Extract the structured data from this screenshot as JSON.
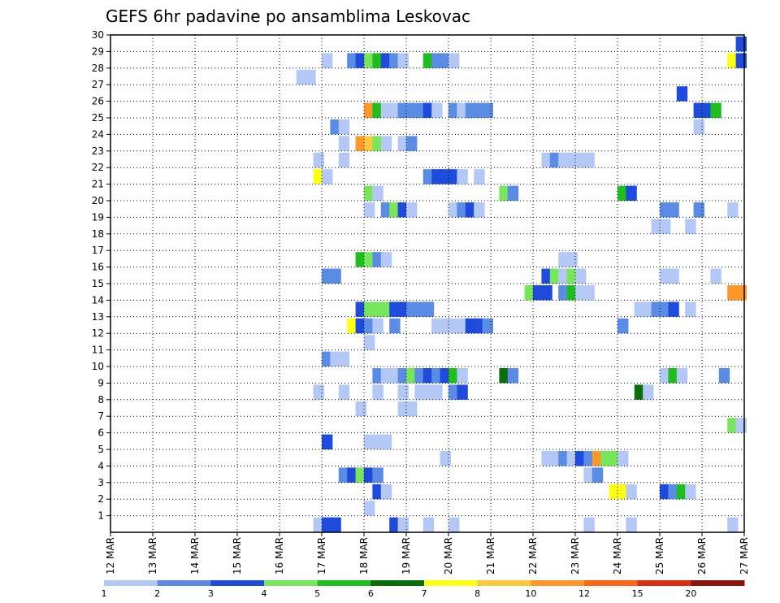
{
  "chart_data": {
    "type": "heatmap",
    "title": "GEFS 6hr padavine po ansamblima Leskovac",
    "xlabel": "",
    "ylabel": "",
    "x_ticks": [
      "12 MAR",
      "13 MAR",
      "14 MAR",
      "15 MAR",
      "16 MAR",
      "17 MAR",
      "18 MAR",
      "19 MAR",
      "20 MAR",
      "21 MAR",
      "22 MAR",
      "23 MAR",
      "24 MAR",
      "25 MAR",
      "26 MAR",
      "27 MAR"
    ],
    "x_range": [
      "12 MAR",
      "27 MAR"
    ],
    "x_step": "6hr",
    "y_ticks": [
      "1",
      "2",
      "3",
      "4",
      "5",
      "6",
      "7",
      "8",
      "9",
      "10",
      "11",
      "12",
      "13",
      "14",
      "15",
      "16",
      "17",
      "18",
      "19",
      "20",
      "21",
      "22",
      "23",
      "24",
      "25",
      "26",
      "27",
      "28",
      "29",
      "30"
    ],
    "y_range": [
      0,
      30
    ],
    "grid": true,
    "colorbar": {
      "labels": [
        "1",
        "2",
        "3",
        "4",
        "5",
        "6",
        "7",
        "8",
        "10",
        "12",
        "15",
        "20"
      ],
      "colors": [
        "#b4c8f5",
        "#5a8ce6",
        "#1e4bdc",
        "#78e65a",
        "#1ebe1e",
        "#0a6e0a",
        "#ffff14",
        "#ffc83c",
        "#ff9628",
        "#ff6414",
        "#dc2d14",
        "#8c140a"
      ]
    },
    "cells": [
      [
        16.8,
        0,
        0
      ],
      [
        17.0,
        0,
        2
      ],
      [
        17.2,
        0,
        2
      ],
      [
        18.6,
        0,
        2
      ],
      [
        18.8,
        0,
        0
      ],
      [
        19.4,
        0,
        0
      ],
      [
        20.0,
        0,
        0
      ],
      [
        23.2,
        0,
        0
      ],
      [
        24.2,
        0,
        0
      ],
      [
        26.6,
        0,
        0
      ],
      [
        18.0,
        1,
        0
      ],
      [
        18.2,
        2,
        2
      ],
      [
        18.4,
        2,
        0
      ],
      [
        23.8,
        2,
        6
      ],
      [
        24.0,
        2,
        6
      ],
      [
        24.2,
        2,
        0
      ],
      [
        25.0,
        2,
        2
      ],
      [
        25.2,
        2,
        1
      ],
      [
        25.4,
        2,
        4
      ],
      [
        25.6,
        2,
        0
      ],
      [
        17.4,
        3,
        1
      ],
      [
        17.6,
        3,
        2
      ],
      [
        17.8,
        3,
        3
      ],
      [
        18.0,
        3,
        2
      ],
      [
        18.2,
        3,
        1
      ],
      [
        23.2,
        3,
        0
      ],
      [
        23.4,
        3,
        1
      ],
      [
        19.8,
        4,
        0
      ],
      [
        22.2,
        4,
        0
      ],
      [
        22.4,
        4,
        0
      ],
      [
        22.6,
        4,
        1
      ],
      [
        22.8,
        4,
        0
      ],
      [
        23.0,
        4,
        2
      ],
      [
        23.2,
        4,
        1
      ],
      [
        23.4,
        4,
        8
      ],
      [
        23.6,
        4,
        3
      ],
      [
        23.8,
        4,
        3
      ],
      [
        24.0,
        4,
        0
      ],
      [
        18.0,
        5,
        0
      ],
      [
        18.2,
        5,
        0
      ],
      [
        18.4,
        5,
        0
      ],
      [
        17.0,
        5,
        2
      ],
      [
        26.6,
        6,
        3
      ],
      [
        26.8,
        6,
        0
      ],
      [
        17.8,
        7,
        0
      ],
      [
        18.8,
        7,
        0
      ],
      [
        19.0,
        7,
        0
      ],
      [
        16.8,
        8,
        0
      ],
      [
        17.4,
        8,
        0
      ],
      [
        18.2,
        8,
        0
      ],
      [
        18.8,
        8,
        0
      ],
      [
        19.2,
        8,
        0
      ],
      [
        19.4,
        8,
        0
      ],
      [
        19.6,
        8,
        0
      ],
      [
        20.0,
        8,
        1
      ],
      [
        20.2,
        8,
        2
      ],
      [
        24.4,
        8,
        5
      ],
      [
        24.6,
        8,
        0
      ],
      [
        18.2,
        9,
        1
      ],
      [
        18.4,
        9,
        0
      ],
      [
        18.6,
        9,
        0
      ],
      [
        18.8,
        9,
        1
      ],
      [
        19.0,
        9,
        3
      ],
      [
        19.2,
        9,
        1
      ],
      [
        19.4,
        9,
        2
      ],
      [
        19.6,
        9,
        1
      ],
      [
        19.8,
        9,
        2
      ],
      [
        20.0,
        9,
        4
      ],
      [
        20.2,
        9,
        0
      ],
      [
        21.2,
        9,
        5
      ],
      [
        21.4,
        9,
        1
      ],
      [
        25.0,
        9,
        0
      ],
      [
        25.2,
        9,
        4
      ],
      [
        25.4,
        9,
        0
      ],
      [
        26.4,
        9,
        1
      ],
      [
        17.0,
        10,
        1
      ],
      [
        17.2,
        10,
        0
      ],
      [
        17.4,
        10,
        0
      ],
      [
        18.0,
        11,
        0
      ],
      [
        17.6,
        12,
        6
      ],
      [
        17.8,
        12,
        2
      ],
      [
        18.0,
        12,
        1
      ],
      [
        18.2,
        12,
        0
      ],
      [
        18.6,
        12,
        1
      ],
      [
        19.6,
        12,
        0
      ],
      [
        19.8,
        12,
        0
      ],
      [
        20.0,
        12,
        0
      ],
      [
        20.2,
        12,
        0
      ],
      [
        20.4,
        12,
        2
      ],
      [
        20.6,
        12,
        2
      ],
      [
        20.8,
        12,
        1
      ],
      [
        24.0,
        12,
        1
      ],
      [
        17.8,
        13,
        2
      ],
      [
        18.0,
        13,
        3
      ],
      [
        18.2,
        13,
        3
      ],
      [
        18.4,
        13,
        3
      ],
      [
        18.6,
        13,
        2
      ],
      [
        18.8,
        13,
        2
      ],
      [
        19.0,
        13,
        1
      ],
      [
        19.2,
        13,
        1
      ],
      [
        19.4,
        13,
        1
      ],
      [
        24.4,
        13,
        0
      ],
      [
        24.6,
        13,
        0
      ],
      [
        24.8,
        13,
        1
      ],
      [
        25.0,
        13,
        1
      ],
      [
        25.2,
        13,
        2
      ],
      [
        25.6,
        13,
        0
      ],
      [
        21.8,
        14,
        3
      ],
      [
        22.0,
        14,
        2
      ],
      [
        22.2,
        14,
        2
      ],
      [
        22.6,
        14,
        1
      ],
      [
        22.8,
        14,
        4
      ],
      [
        23.0,
        14,
        0
      ],
      [
        23.2,
        14,
        0
      ],
      [
        26.6,
        14,
        8
      ],
      [
        26.8,
        14,
        8
      ],
      [
        17.0,
        15,
        1
      ],
      [
        17.2,
        15,
        1
      ],
      [
        22.2,
        15,
        2
      ],
      [
        22.4,
        15,
        3
      ],
      [
        22.6,
        15,
        0
      ],
      [
        22.8,
        15,
        3
      ],
      [
        23.0,
        15,
        0
      ],
      [
        25.0,
        15,
        0
      ],
      [
        25.2,
        15,
        0
      ],
      [
        26.2,
        15,
        0
      ],
      [
        17.8,
        16,
        4
      ],
      [
        18.0,
        16,
        3
      ],
      [
        18.2,
        16,
        1
      ],
      [
        18.4,
        16,
        0
      ],
      [
        22.6,
        16,
        0
      ],
      [
        22.8,
        16,
        0
      ],
      [
        24.8,
        18,
        0
      ],
      [
        25.0,
        18,
        0
      ],
      [
        25.6,
        18,
        0
      ],
      [
        18.0,
        19,
        0
      ],
      [
        18.4,
        19,
        1
      ],
      [
        18.6,
        19,
        3
      ],
      [
        18.8,
        19,
        2
      ],
      [
        19.0,
        19,
        0
      ],
      [
        20.0,
        19,
        0
      ],
      [
        20.2,
        19,
        1
      ],
      [
        20.4,
        19,
        2
      ],
      [
        20.6,
        19,
        0
      ],
      [
        25.0,
        19,
        1
      ],
      [
        25.2,
        19,
        1
      ],
      [
        25.8,
        19,
        1
      ],
      [
        26.6,
        19,
        0
      ],
      [
        18.0,
        20,
        3
      ],
      [
        18.2,
        20,
        0
      ],
      [
        21.2,
        20,
        3
      ],
      [
        21.4,
        20,
        1
      ],
      [
        24.0,
        20,
        4
      ],
      [
        24.2,
        20,
        2
      ],
      [
        16.8,
        21,
        6
      ],
      [
        17.0,
        21,
        0
      ],
      [
        19.4,
        21,
        1
      ],
      [
        19.6,
        21,
        2
      ],
      [
        19.8,
        21,
        2
      ],
      [
        20.0,
        21,
        2
      ],
      [
        20.2,
        21,
        0
      ],
      [
        20.6,
        21,
        0
      ],
      [
        16.8,
        22,
        0
      ],
      [
        17.4,
        22,
        0
      ],
      [
        22.2,
        22,
        0
      ],
      [
        22.4,
        22,
        1
      ],
      [
        22.6,
        22,
        0
      ],
      [
        22.8,
        22,
        0
      ],
      [
        23.0,
        22,
        0
      ],
      [
        23.2,
        22,
        0
      ],
      [
        17.4,
        23,
        0
      ],
      [
        17.8,
        23,
        8
      ],
      [
        18.0,
        23,
        7
      ],
      [
        18.2,
        23,
        3
      ],
      [
        18.4,
        23,
        0
      ],
      [
        18.8,
        23,
        0
      ],
      [
        19.0,
        23,
        1
      ],
      [
        17.2,
        24,
        1
      ],
      [
        17.4,
        24,
        0
      ],
      [
        25.8,
        24,
        0
      ],
      [
        18.0,
        25,
        8
      ],
      [
        18.2,
        25,
        4
      ],
      [
        18.4,
        25,
        0
      ],
      [
        18.6,
        25,
        0
      ],
      [
        18.8,
        25,
        1
      ],
      [
        19.0,
        25,
        1
      ],
      [
        19.2,
        25,
        1
      ],
      [
        19.4,
        25,
        2
      ],
      [
        19.6,
        25,
        0
      ],
      [
        20.0,
        25,
        1
      ],
      [
        20.2,
        25,
        0
      ],
      [
        20.4,
        25,
        1
      ],
      [
        20.6,
        25,
        1
      ],
      [
        20.8,
        25,
        1
      ],
      [
        25.8,
        25,
        2
      ],
      [
        26.0,
        25,
        2
      ],
      [
        26.2,
        25,
        4
      ],
      [
        25.4,
        26,
        2
      ],
      [
        16.4,
        27,
        0
      ],
      [
        16.6,
        27,
        0
      ],
      [
        17.0,
        28,
        0
      ],
      [
        17.6,
        28,
        1
      ],
      [
        17.8,
        28,
        2
      ],
      [
        18.0,
        28,
        3
      ],
      [
        18.2,
        28,
        4
      ],
      [
        18.4,
        28,
        2
      ],
      [
        18.6,
        28,
        1
      ],
      [
        18.8,
        28,
        0
      ],
      [
        19.4,
        28,
        4
      ],
      [
        19.6,
        28,
        1
      ],
      [
        19.8,
        28,
        1
      ],
      [
        20.0,
        28,
        0
      ],
      [
        26.6,
        28,
        6
      ],
      [
        26.8,
        28,
        2
      ],
      [
        26.8,
        29,
        2
      ]
    ]
  }
}
